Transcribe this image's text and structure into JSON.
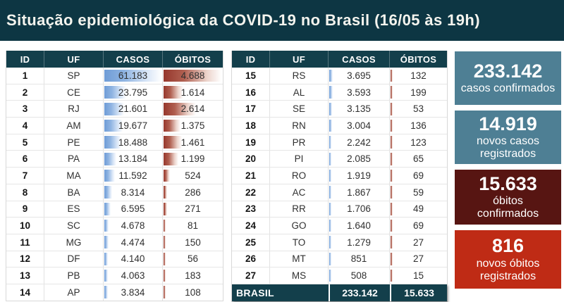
{
  "header": {
    "title": "Situação epidemiológica da COVID-19 no Brasil (16/05 às 19h)"
  },
  "colors": {
    "band_bg": "#0d3643",
    "table_header_bg": "#133f4b",
    "total_row_bg": "#133f4b",
    "databar_blue": "#6f9cd6",
    "databar_red": "#96382d",
    "card_teal": "#4e7f94",
    "card_maroon": "#571512",
    "card_red": "#bf2b15"
  },
  "chart_data": {
    "type": "table",
    "title": "Situação epidemiológica da COVID-19 no Brasil (16/05 às 19h)",
    "columns": [
      "ID",
      "UF",
      "CASOS",
      "ÓBITOS"
    ],
    "split_index": 14,
    "bar_max": {
      "casos": 61183,
      "obitos": 4688
    },
    "rows": [
      [
        1,
        "SP",
        61183,
        4688
      ],
      [
        2,
        "CE",
        23795,
        1614
      ],
      [
        3,
        "RJ",
        21601,
        2614
      ],
      [
        4,
        "AM",
        19677,
        1375
      ],
      [
        5,
        "PE",
        18488,
        1461
      ],
      [
        6,
        "PA",
        13184,
        1199
      ],
      [
        7,
        "MA",
        11592,
        524
      ],
      [
        8,
        "BA",
        8314,
        286
      ],
      [
        9,
        "ES",
        6595,
        271
      ],
      [
        10,
        "SC",
        4678,
        81
      ],
      [
        11,
        "MG",
        4474,
        150
      ],
      [
        12,
        "DF",
        4140,
        56
      ],
      [
        13,
        "PB",
        4063,
        183
      ],
      [
        14,
        "AP",
        3834,
        108
      ],
      [
        15,
        "RS",
        3695,
        132
      ],
      [
        16,
        "AL",
        3593,
        199
      ],
      [
        17,
        "SE",
        3135,
        53
      ],
      [
        18,
        "RN",
        3004,
        136
      ],
      [
        19,
        "PR",
        2242,
        123
      ],
      [
        20,
        "PI",
        2085,
        65
      ],
      [
        21,
        "RO",
        1919,
        69
      ],
      [
        22,
        "AC",
        1867,
        59
      ],
      [
        23,
        "RR",
        1706,
        49
      ],
      [
        24,
        "GO",
        1640,
        69
      ],
      [
        25,
        "TO",
        1279,
        27
      ],
      [
        26,
        "MT",
        851,
        27
      ],
      [
        27,
        "MS",
        508,
        15
      ]
    ],
    "total": {
      "label": "BRASIL",
      "casos": 233142,
      "obitos": 15633
    },
    "summary_cards": [
      {
        "value": 233142,
        "label": "casos confirmados",
        "color": "#4e7f94"
      },
      {
        "value": 14919,
        "label": "novos casos\nregistrados",
        "color": "#4e7f94"
      },
      {
        "value": 15633,
        "label": "óbitos\nconfirmados",
        "color": "#571512"
      },
      {
        "value": 816,
        "label": "novos óbitos\nregistrados",
        "color": "#bf2b15"
      }
    ]
  }
}
